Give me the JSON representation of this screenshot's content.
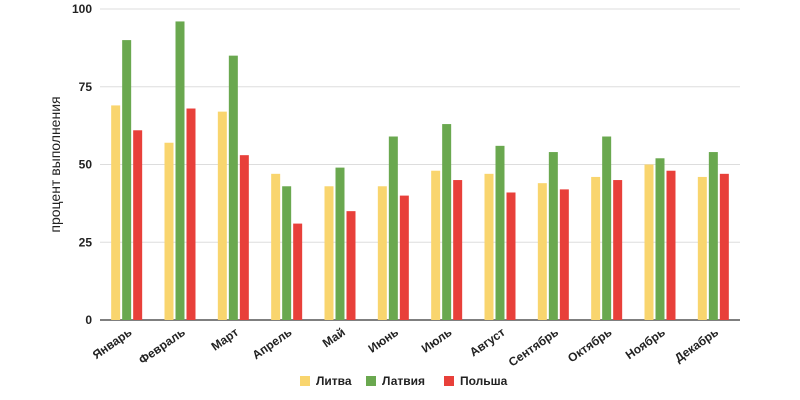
{
  "chart_data": {
    "type": "bar",
    "title": "",
    "xlabel": "",
    "ylabel": "процент выполнения",
    "ylim": [
      0,
      100
    ],
    "yticks": [
      0,
      25,
      50,
      75,
      100
    ],
    "grid": true,
    "legend_position": "bottom",
    "categories": [
      "Январь",
      "Февраль",
      "Март",
      "Апрель",
      "Май",
      "Июнь",
      "Июль",
      "Август",
      "Сентябрь",
      "Октябрь",
      "Ноябрь",
      "Декабрь"
    ],
    "series": [
      {
        "name": "Литва",
        "color": "#f9d56e",
        "values": [
          69,
          57,
          67,
          47,
          43,
          43,
          48,
          47,
          44,
          46,
          50,
          46
        ]
      },
      {
        "name": "Латвия",
        "color": "#6aa84f",
        "values": [
          90,
          96,
          85,
          43,
          49,
          59,
          63,
          56,
          54,
          59,
          52,
          54
        ]
      },
      {
        "name": "Польша",
        "color": "#e8403a",
        "values": [
          61,
          68,
          53,
          31,
          35,
          40,
          45,
          41,
          42,
          45,
          48,
          47
        ]
      }
    ]
  }
}
